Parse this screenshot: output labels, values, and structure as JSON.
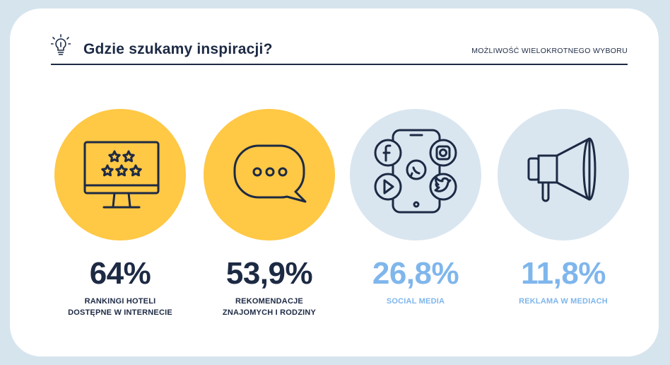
{
  "header": {
    "title": "Gdzie szukamy inspiracji?",
    "subtitle": "MOŻLIWOŚĆ WIELOKROTNEGO WYBORU",
    "icon": "lightbulb-icon"
  },
  "items": [
    {
      "value": "64%",
      "label_line1": "RANKINGI HOTELI",
      "label_line2": "DOSTĘPNE W INTERNECIE",
      "icon": "monitor-stars-icon",
      "circle_color": "#ffc845",
      "text_color": "#1d2a44"
    },
    {
      "value": "53,9%",
      "label_line1": "REKOMENDACJE",
      "label_line2": "ZNAJOMYCH I RODZINY",
      "icon": "speech-bubble-icon",
      "circle_color": "#ffc845",
      "text_color": "#1d2a44"
    },
    {
      "value": "26,8%",
      "label_line1": "SOCIAL MEDIA",
      "label_line2": "",
      "icon": "smartphone-social-icon",
      "circle_color": "#d9e6f0",
      "text_color": "#7fb6ec"
    },
    {
      "value": "11,8%",
      "label_line1": "REKLAMA W MEDIACH",
      "label_line2": "",
      "icon": "megaphone-icon",
      "circle_color": "#d9e6f0",
      "text_color": "#7fb6ec"
    }
  ],
  "colors": {
    "dark": "#1d2a44",
    "yellow": "#ffc845",
    "light_blue": "#7fb6ec",
    "pale_blue": "#d9e6f0",
    "background": "#d6e4ee"
  }
}
